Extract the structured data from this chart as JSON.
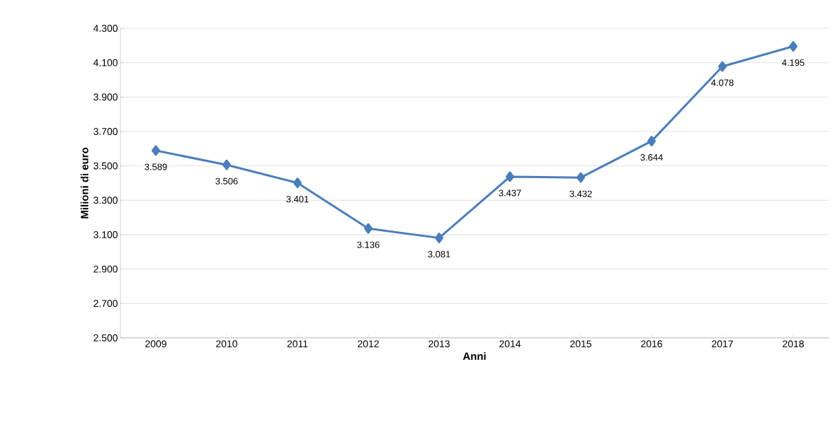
{
  "chart_data": {
    "type": "line",
    "xlabel": "Anni",
    "ylabel": "Milioni di euro",
    "categories": [
      "2009",
      "2010",
      "2011",
      "2012",
      "2013",
      "2014",
      "2015",
      "2016",
      "2017",
      "2018"
    ],
    "values": [
      3589,
      3506,
      3401,
      3136,
      3081,
      3437,
      3432,
      3644,
      4078,
      4195
    ],
    "value_labels": [
      "3.589",
      "3.506",
      "3.401",
      "3.136",
      "3.081",
      "3.437",
      "3.432",
      "3.644",
      "4.078",
      "4.195"
    ],
    "color": "#4a7ebb",
    "marker": "diamond",
    "grid": "y",
    "ylim": [
      2500,
      4300
    ],
    "yticks": [
      {
        "value": 2500,
        "label": "2.500"
      },
      {
        "value": 2700,
        "label": "2.700"
      },
      {
        "value": 2900,
        "label": "2.900"
      },
      {
        "value": 3100,
        "label": "3.100"
      },
      {
        "value": 3300,
        "label": "3.300"
      },
      {
        "value": 3500,
        "label": "3.500"
      },
      {
        "value": 3700,
        "label": "3.700"
      },
      {
        "value": 3900,
        "label": "3.900"
      },
      {
        "value": 4100,
        "label": "4.100"
      },
      {
        "value": 4300,
        "label": "4.300"
      }
    ]
  }
}
